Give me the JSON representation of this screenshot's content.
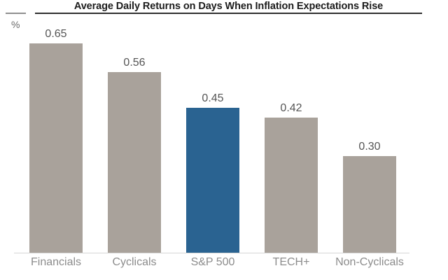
{
  "chart_data": {
    "type": "bar",
    "title": "Average Daily Returns on Days When Inflation Expectations Rise",
    "ylabel": "%",
    "xlabel": "",
    "categories": [
      "Financials",
      "Cyclicals",
      "S&P 500",
      "TECH+",
      "Non-Cyclicals"
    ],
    "values": [
      0.65,
      0.56,
      0.45,
      0.42,
      0.3
    ],
    "value_labels": [
      "0.65",
      "0.56",
      "0.45",
      "0.42",
      "0.30"
    ],
    "ylim": [
      0,
      0.7
    ],
    "grid": false,
    "legend_position": "none",
    "highlight_category": "S&P 500",
    "highlight_index": 2,
    "colors": {
      "bar": "#a9a29b",
      "highlight_bar": "#2a6391",
      "title_text": "#1c1c1c",
      "title_rule": "#2e2e2e",
      "value_label": "#555555",
      "category_label": "#8c8c8c",
      "axis_line": "#d6d6d6"
    }
  }
}
